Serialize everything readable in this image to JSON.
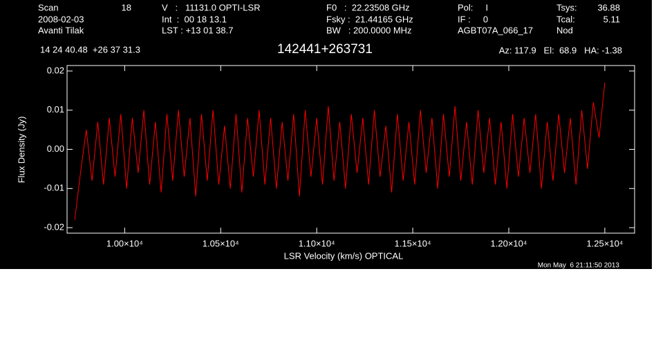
{
  "header": {
    "col1": [
      "Scan",
      "2008-02-03",
      "Avanti Tilak"
    ],
    "scan": "18",
    "col2": [
      "V   :   11131.0 OPTI-LSR",
      "Int  :  00 18 13.1",
      "LST : +13 01 38.7"
    ],
    "col3": [
      "F0   :  22.23508 GHz",
      "Fsky :  21.44165 GHz",
      "BW   : 200.0000 MHz"
    ],
    "col4": [
      "Pol:     I",
      "IF :     0",
      "AGBT07A_066_17"
    ],
    "col5": [
      "Tsys:",
      "Tcal:",
      "Nod"
    ],
    "col5_values": [
      "36.88",
      "5.11"
    ],
    "coords": "14 24 40.48  +26 37 31.3",
    "pointing": "Az: 117.9   El:  68.9   HA: -1.38",
    "timestamp": "Mon May  6 21:11:50 2013"
  },
  "chart_data": {
    "type": "line",
    "title": "142441+263731",
    "x_label": "LSR Velocity (km/s) OPTICAL",
    "y_label": "Flux Density (Jy)",
    "color": "#ff0000",
    "xlim": [
      9700,
      12655
    ],
    "ylim": [
      -0.0214,
      0.0214
    ],
    "xticks": [
      {
        "value": 10000,
        "label": "1.00×10⁴"
      },
      {
        "value": 10500,
        "label": "1.05×10⁴"
      },
      {
        "value": 11000,
        "label": "1.10×10⁴"
      },
      {
        "value": 11500,
        "label": "1.15×10⁴"
      },
      {
        "value": 12000,
        "label": "1.20×10⁴"
      },
      {
        "value": 12500,
        "label": "1.25×10⁴"
      }
    ],
    "yticks": [
      -0.02,
      -0.01,
      {
        "value": 0,
        "label": "0.00"
      },
      0.01,
      0.02
    ],
    "x": [
      9740,
      9770,
      9800,
      9830,
      9860,
      9890,
      9920,
      9950,
      9980,
      10010,
      10040,
      10070,
      10100,
      10130,
      10160,
      10190,
      10220,
      10250,
      10280,
      10310,
      10340,
      10370,
      10400,
      10430,
      10460,
      10490,
      10520,
      10550,
      10580,
      10610,
      10640,
      10670,
      10700,
      10730,
      10760,
      10790,
      10820,
      10850,
      10880,
      10910,
      10940,
      10970,
      11000,
      11030,
      11060,
      11090,
      11120,
      11150,
      11180,
      11210,
      11240,
      11270,
      11300,
      11330,
      11360,
      11390,
      11420,
      11450,
      11480,
      11510,
      11540,
      11570,
      11600,
      11630,
      11660,
      11690,
      11720,
      11750,
      11780,
      11810,
      11840,
      11870,
      11900,
      11930,
      11960,
      11990,
      12020,
      12050,
      12080,
      12110,
      12140,
      12170,
      12200,
      12230,
      12260,
      12290,
      12320,
      12350,
      12380,
      12410,
      12440,
      12470,
      12500
    ],
    "values": [
      -0.018,
      -0.006,
      0.005,
      -0.008,
      0.007,
      -0.009,
      0.008,
      -0.007,
      0.009,
      -0.01,
      0.008,
      -0.006,
      0.01,
      -0.009,
      0.007,
      -0.011,
      0.009,
      -0.008,
      0.01,
      -0.007,
      0.008,
      -0.012,
      0.009,
      -0.008,
      0.01,
      -0.009,
      0.006,
      -0.01,
      0.009,
      -0.011,
      0.008,
      -0.007,
      0.01,
      -0.009,
      0.008,
      -0.01,
      0.007,
      -0.008,
      0.009,
      -0.012,
      0.01,
      -0.007,
      0.008,
      -0.009,
      0.011,
      -0.008,
      0.007,
      -0.01,
      0.009,
      -0.006,
      0.008,
      -0.009,
      0.01,
      -0.007,
      0.006,
      -0.011,
      0.009,
      -0.008,
      0.007,
      -0.009,
      0.01,
      -0.006,
      0.008,
      -0.01,
      0.009,
      -0.007,
      0.011,
      -0.008,
      0.007,
      -0.009,
      0.01,
      -0.006,
      0.008,
      -0.009,
      0.007,
      -0.01,
      0.009,
      -0.007,
      0.008,
      -0.006,
      0.009,
      -0.01,
      0.007,
      -0.008,
      0.009,
      -0.006,
      0.008,
      -0.009,
      0.01,
      -0.005,
      0.012,
      0.003,
      0.017
    ]
  }
}
